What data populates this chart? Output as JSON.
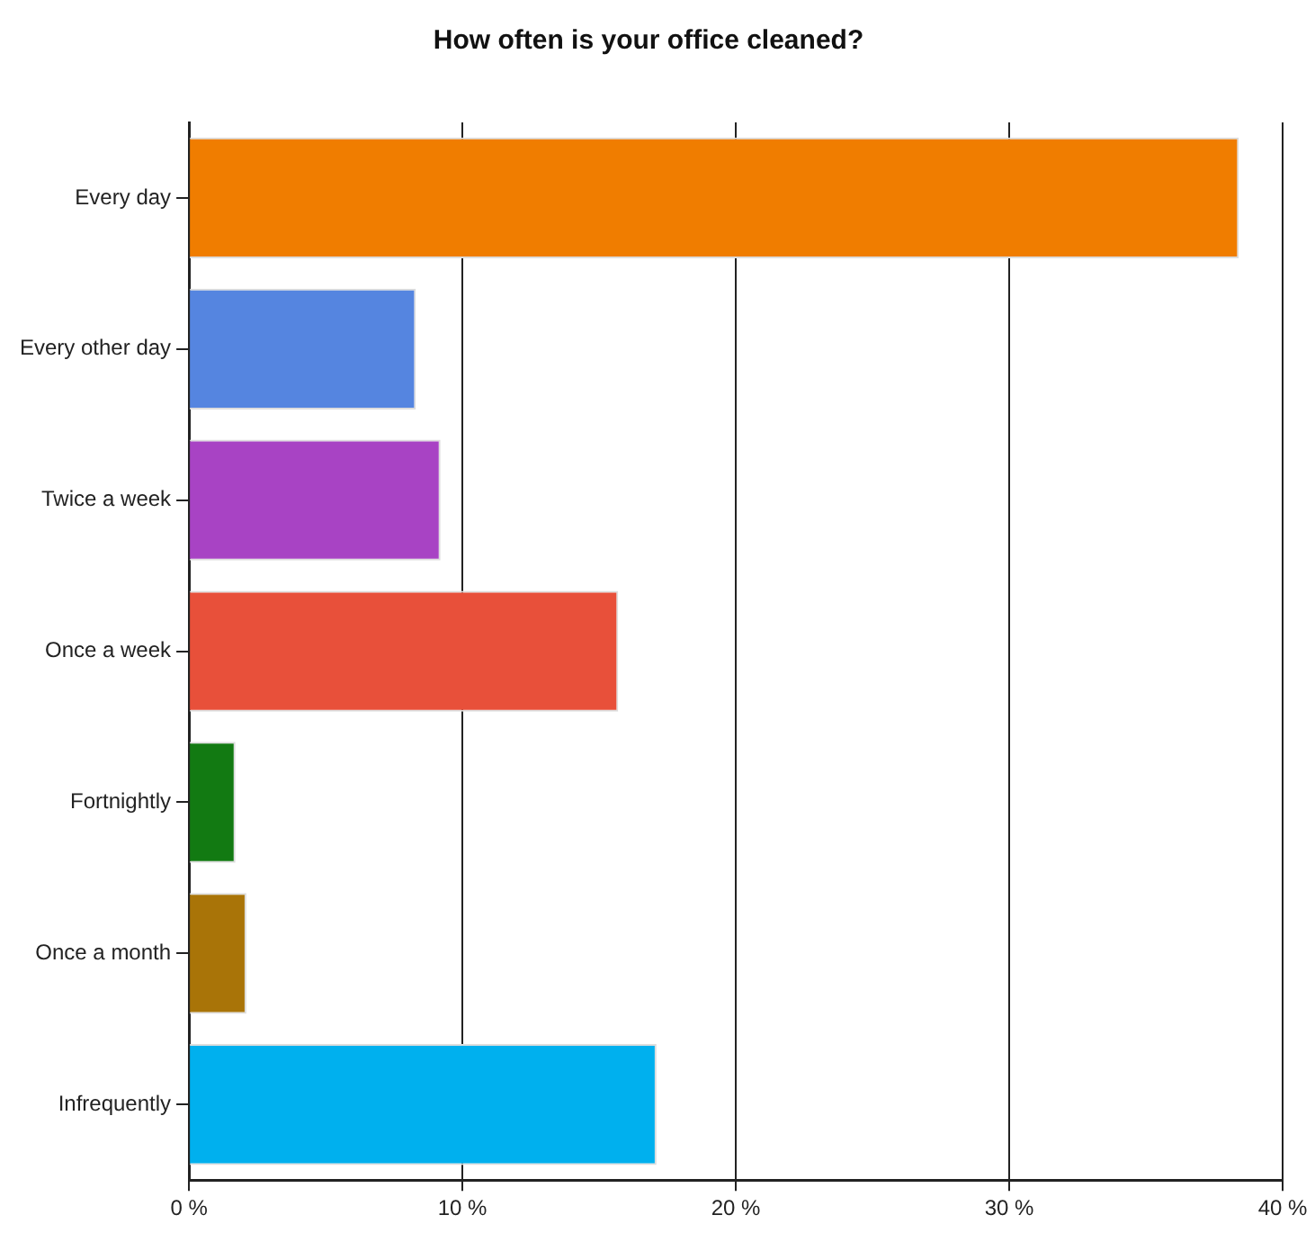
{
  "chart_data": {
    "type": "bar",
    "orientation": "horizontal",
    "title": "How often is your office cleaned?",
    "categories": [
      "Every day",
      "Every other day",
      "Twice a week",
      "Once a week",
      "Fortnightly",
      "Once a month",
      "Infrequently"
    ],
    "values": [
      38.4,
      8.3,
      9.2,
      15.7,
      1.7,
      2.1,
      17.1
    ],
    "colors": [
      "#f07d00",
      "#5585e0",
      "#a843c4",
      "#e8503a",
      "#127a12",
      "#a97408",
      "#00b0ee"
    ],
    "xlim": [
      0,
      40
    ],
    "xticks": [
      {
        "value": 0,
        "label": "0 %"
      },
      {
        "value": 10,
        "label": "10 %"
      },
      {
        "value": 20,
        "label": "20 %"
      },
      {
        "value": 30,
        "label": "30 %"
      },
      {
        "value": 40,
        "label": "40 %"
      }
    ],
    "grid": "x"
  }
}
